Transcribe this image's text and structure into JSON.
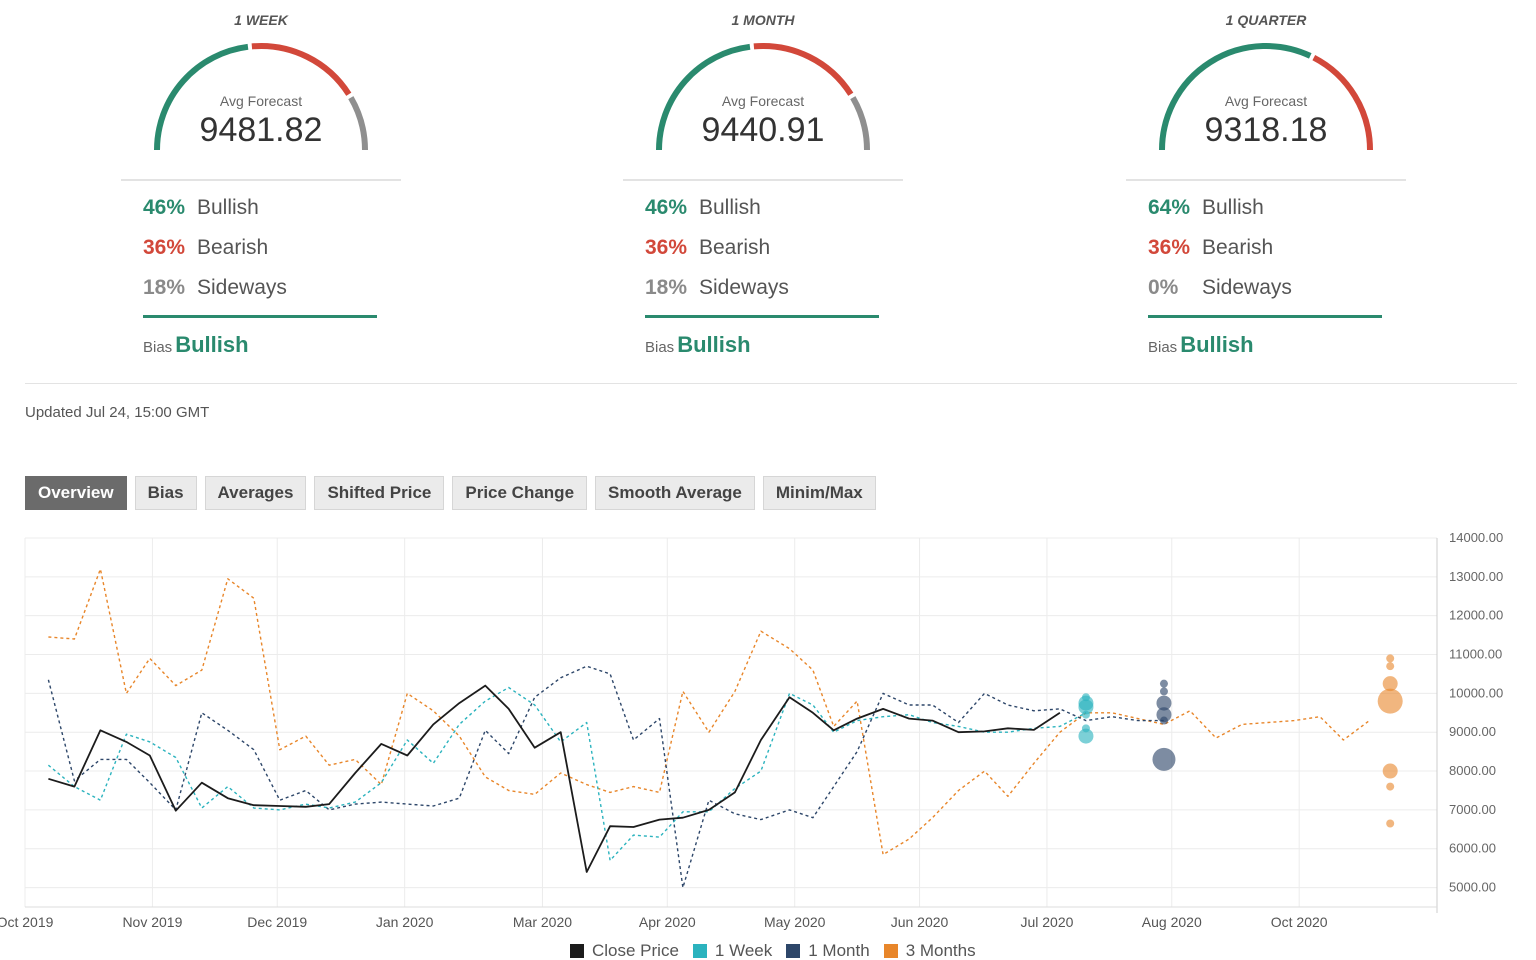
{
  "panels": [
    {
      "title": "1 WEEK",
      "avg_label": "Avg Forecast",
      "avg_value": "9481.82",
      "gauge": {
        "bullish": 0.46,
        "bearish": 0.36,
        "sideways": 0.18
      },
      "bullish_pct": "46%",
      "bullish_label": "Bullish",
      "bearish_pct": "36%",
      "bearish_label": "Bearish",
      "sideways_pct": "18%",
      "sideways_label": "Sideways",
      "bias_label": "Bias",
      "bias_value": "Bullish"
    },
    {
      "title": "1 MONTH",
      "avg_label": "Avg Forecast",
      "avg_value": "9440.91",
      "gauge": {
        "bullish": 0.46,
        "bearish": 0.36,
        "sideways": 0.18
      },
      "bullish_pct": "46%",
      "bullish_label": "Bullish",
      "bearish_pct": "36%",
      "bearish_label": "Bearish",
      "sideways_pct": "18%",
      "sideways_label": "Sideways",
      "bias_label": "Bias",
      "bias_value": "Bullish"
    },
    {
      "title": "1 QUARTER",
      "avg_label": "Avg Forecast",
      "avg_value": "9318.18",
      "gauge": {
        "bullish": 0.64,
        "bearish": 0.36,
        "sideways": 0.0
      },
      "bullish_pct": "64%",
      "bullish_label": "Bullish",
      "bearish_pct": "36%",
      "bearish_label": "Bearish",
      "sideways_pct": "0%",
      "sideways_label": "Sideways",
      "bias_label": "Bias",
      "bias_value": "Bullish"
    }
  ],
  "updated": "Updated Jul 24, 15:00 GMT",
  "tabs": [
    "Overview",
    "Bias",
    "Averages",
    "Shifted Price",
    "Price Change",
    "Smooth Average",
    "Minim/Max"
  ],
  "colors": {
    "bullish": "#2a8a6e",
    "bearish": "#d2483a",
    "sideways": "#8f8f8f",
    "close": "#1c1c1c",
    "week": "#2bb3be",
    "month": "#2d4669",
    "quarter": "#e8862a"
  },
  "chart_data": {
    "type": "line",
    "ylim": [
      4500,
      14000
    ],
    "yticks": [
      5000,
      6000,
      7000,
      8000,
      9000,
      10000,
      11000,
      12000,
      13000,
      14000
    ],
    "ytick_labels": [
      "5000.00",
      "6000.00",
      "7000.00",
      "8000.00",
      "9000.00",
      "10000.00",
      "11000.00",
      "12000.00",
      "13000.00",
      "14000.00"
    ],
    "xlim": [
      0,
      54.3
    ],
    "x_unit": "weeks since Oct 1 2019",
    "xticks": [
      {
        "x": 0.0,
        "label": "Oct 2019"
      },
      {
        "x": 4.9,
        "label": "Nov 2019"
      },
      {
        "x": 9.7,
        "label": "Dec 2019"
      },
      {
        "x": 14.6,
        "label": "Jan 2020"
      },
      {
        "x": 19.9,
        "label": "Mar 2020"
      },
      {
        "x": 24.7,
        "label": "Apr 2020"
      },
      {
        "x": 29.6,
        "label": "May 2020"
      },
      {
        "x": 34.4,
        "label": "Jun 2020"
      },
      {
        "x": 39.3,
        "label": "Jul 2020"
      },
      {
        "x": 44.1,
        "label": "Aug 2020"
      },
      {
        "x": 49.0,
        "label": "Oct 2020"
      }
    ],
    "series": [
      {
        "name": "Close Price",
        "key": "close",
        "dashed": false,
        "x": [
          0.9,
          1.9,
          2.9,
          3.9,
          4.8,
          5.8,
          6.8,
          7.8,
          8.8,
          9.8,
          10.8,
          11.7,
          12.7,
          13.7,
          14.7,
          15.7,
          16.7,
          17.7,
          18.6,
          19.6,
          20.6,
          21.6,
          22.5,
          23.4,
          24.4,
          25.3,
          26.3,
          27.3,
          28.3,
          29.4,
          30.3,
          31.1,
          32.0,
          33.0,
          34.0,
          34.9,
          35.9,
          36.9,
          37.8,
          38.8,
          39.8
        ],
        "values": [
          7800,
          7600,
          9050,
          8750,
          8400,
          6980,
          7700,
          7300,
          7120,
          7100,
          7080,
          7150,
          7950,
          8700,
          8400,
          9200,
          9750,
          10200,
          9600,
          8600,
          9000,
          5400,
          6580,
          6560,
          6750,
          6800,
          7000,
          7450,
          8800,
          9900,
          9500,
          9050,
          9350,
          9600,
          9350,
          9300,
          9000,
          9020,
          9100,
          9060,
          9500
        ]
      },
      {
        "name": "1 Week",
        "key": "week",
        "dashed": true,
        "x": [
          0.9,
          1.9,
          2.9,
          3.9,
          4.8,
          5.8,
          6.8,
          7.8,
          8.8,
          9.8,
          10.8,
          11.7,
          12.7,
          13.7,
          14.7,
          15.7,
          16.7,
          17.7,
          18.6,
          19.6,
          20.6,
          21.6,
          22.5,
          23.4,
          24.4,
          25.3,
          26.3,
          27.3,
          28.3,
          29.4,
          30.3,
          31.1,
          32.0,
          33.0,
          34.0,
          34.9,
          35.9,
          36.9,
          37.8,
          38.8,
          39.8,
          40.8
        ],
        "values": [
          8150,
          7600,
          7250,
          8950,
          8750,
          8350,
          7050,
          7600,
          7050,
          7000,
          7150,
          7050,
          7200,
          7700,
          8800,
          8200,
          9200,
          9800,
          10150,
          9700,
          8750,
          9250,
          5700,
          6350,
          6300,
          6950,
          6950,
          7550,
          8000,
          10000,
          9700,
          9000,
          9300,
          9400,
          9450,
          9250,
          9150,
          9000,
          9000,
          9100,
          9150,
          9500
        ]
      },
      {
        "name": "1 Month",
        "key": "month",
        "dashed": true,
        "x": [
          0.9,
          1.9,
          2.9,
          3.9,
          4.8,
          5.8,
          6.8,
          7.8,
          8.8,
          9.8,
          10.8,
          11.7,
          12.7,
          13.7,
          14.7,
          15.7,
          16.7,
          17.7,
          18.6,
          19.6,
          20.6,
          21.6,
          22.5,
          23.4,
          24.4,
          25.3,
          26.3,
          27.3,
          28.3,
          29.4,
          30.3,
          31.1,
          32.0,
          33.0,
          34.0,
          34.9,
          35.9,
          36.9,
          37.8,
          38.8,
          39.8,
          40.8,
          41.8,
          42.8,
          43.8
        ],
        "values": [
          10350,
          7750,
          8300,
          8300,
          7700,
          7000,
          9500,
          9050,
          8550,
          7250,
          7500,
          7000,
          7150,
          7200,
          7150,
          7100,
          7300,
          9050,
          8450,
          9900,
          10400,
          10700,
          10500,
          8800,
          9350,
          5000,
          7250,
          6900,
          6750,
          7000,
          6800,
          7600,
          8500,
          10000,
          9700,
          9700,
          9250,
          10000,
          9700,
          9550,
          9600,
          9300,
          9400,
          9300,
          9300
        ]
      },
      {
        "name": "3 Months",
        "key": "quarter",
        "dashed": true,
        "x": [
          0.9,
          1.9,
          2.9,
          3.9,
          4.8,
          5.8,
          6.8,
          7.8,
          8.8,
          9.8,
          10.8,
          11.7,
          12.7,
          13.7,
          14.7,
          15.7,
          16.7,
          17.7,
          18.6,
          19.6,
          20.6,
          21.6,
          22.5,
          23.4,
          24.4,
          25.3,
          26.3,
          27.3,
          28.3,
          29.4,
          30.3,
          31.1,
          32.0,
          33.0,
          34.0,
          34.9,
          35.9,
          36.9,
          37.8,
          38.8,
          39.8,
          40.8,
          41.8,
          42.8,
          43.8,
          44.8,
          45.8,
          46.8,
          47.8,
          48.8,
          49.8,
          50.7,
          51.7
        ],
        "values": [
          11450,
          11400,
          13200,
          10000,
          10900,
          10200,
          10600,
          12950,
          12450,
          8550,
          8900,
          8150,
          8300,
          7650,
          10000,
          9550,
          8900,
          7850,
          7500,
          7400,
          7950,
          7650,
          7450,
          7600,
          7450,
          10050,
          9000,
          10050,
          11600,
          11150,
          10600,
          9150,
          9800,
          5850,
          6250,
          6800,
          7500,
          8000,
          7350,
          8200,
          9000,
          9500,
          9500,
          9350,
          9200,
          9550,
          8850,
          9200,
          9250,
          9300,
          9400,
          8800,
          9300
        ]
      }
    ],
    "forecast_points": [
      {
        "key": "week",
        "x": 40.8,
        "value": 9900,
        "size": "s"
      },
      {
        "key": "week",
        "x": 40.8,
        "value": 9750,
        "size": "m"
      },
      {
        "key": "week",
        "x": 40.8,
        "value": 9650,
        "size": "m"
      },
      {
        "key": "week",
        "x": 40.8,
        "value": 9450,
        "size": "s"
      },
      {
        "key": "week",
        "x": 40.8,
        "value": 9100,
        "size": "s"
      },
      {
        "key": "week",
        "x": 40.8,
        "value": 8900,
        "size": "m"
      },
      {
        "key": "month",
        "x": 43.8,
        "value": 10250,
        "size": "s"
      },
      {
        "key": "month",
        "x": 43.8,
        "value": 10050,
        "size": "s"
      },
      {
        "key": "month",
        "x": 43.8,
        "value": 9750,
        "size": "m"
      },
      {
        "key": "month",
        "x": 43.8,
        "value": 9450,
        "size": "m"
      },
      {
        "key": "month",
        "x": 43.8,
        "value": 9300,
        "size": "s"
      },
      {
        "key": "month",
        "x": 43.8,
        "value": 8300,
        "size": "l"
      },
      {
        "key": "quarter",
        "x": 52.5,
        "value": 10900,
        "size": "s"
      },
      {
        "key": "quarter",
        "x": 52.5,
        "value": 10700,
        "size": "s"
      },
      {
        "key": "quarter",
        "x": 52.5,
        "value": 10250,
        "size": "m"
      },
      {
        "key": "quarter",
        "x": 52.5,
        "value": 9800,
        "size": "xl"
      },
      {
        "key": "quarter",
        "x": 52.5,
        "value": 8000,
        "size": "m"
      },
      {
        "key": "quarter",
        "x": 52.5,
        "value": 7600,
        "size": "s"
      },
      {
        "key": "quarter",
        "x": 52.5,
        "value": 6650,
        "size": "s"
      }
    ],
    "legend": [
      "Close Price",
      "1 Week",
      "1 Month",
      "3 Months"
    ]
  }
}
